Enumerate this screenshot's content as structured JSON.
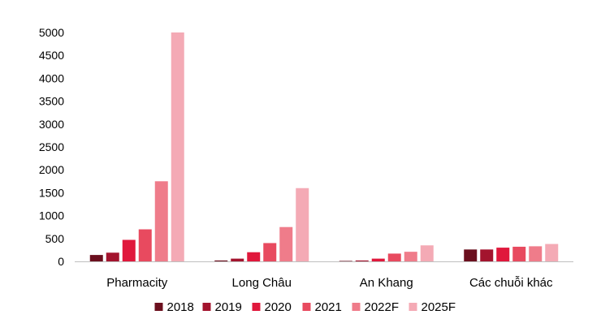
{
  "chart_data": {
    "type": "bar",
    "title": "",
    "xlabel": "",
    "ylabel": "",
    "categories": [
      "Pharmacity",
      "Long Châu",
      "An Khang",
      "Các chuỗi khác"
    ],
    "ylim": [
      0,
      5000
    ],
    "yticks": [
      0,
      500,
      1000,
      1500,
      2000,
      2500,
      3000,
      3500,
      4000,
      4500,
      5000
    ],
    "grid": false,
    "legend_position": "bottom",
    "series": [
      {
        "name": "2018",
        "color": "#6b0f1e",
        "values": [
          140,
          20,
          10,
          260
        ]
      },
      {
        "name": "2019",
        "color": "#a3142e",
        "values": [
          190,
          60,
          20,
          260
        ]
      },
      {
        "name": "2020",
        "color": "#e0183c",
        "values": [
          470,
          200,
          60,
          300
        ]
      },
      {
        "name": "2021",
        "color": "#e84a5f",
        "values": [
          700,
          400,
          170,
          320
        ]
      },
      {
        "name": "2022F",
        "color": "#ef7c8a",
        "values": [
          1750,
          750,
          210,
          330
        ]
      },
      {
        "name": "2025F",
        "color": "#f4aab5",
        "values": [
          5000,
          1600,
          350,
          380
        ]
      }
    ]
  }
}
